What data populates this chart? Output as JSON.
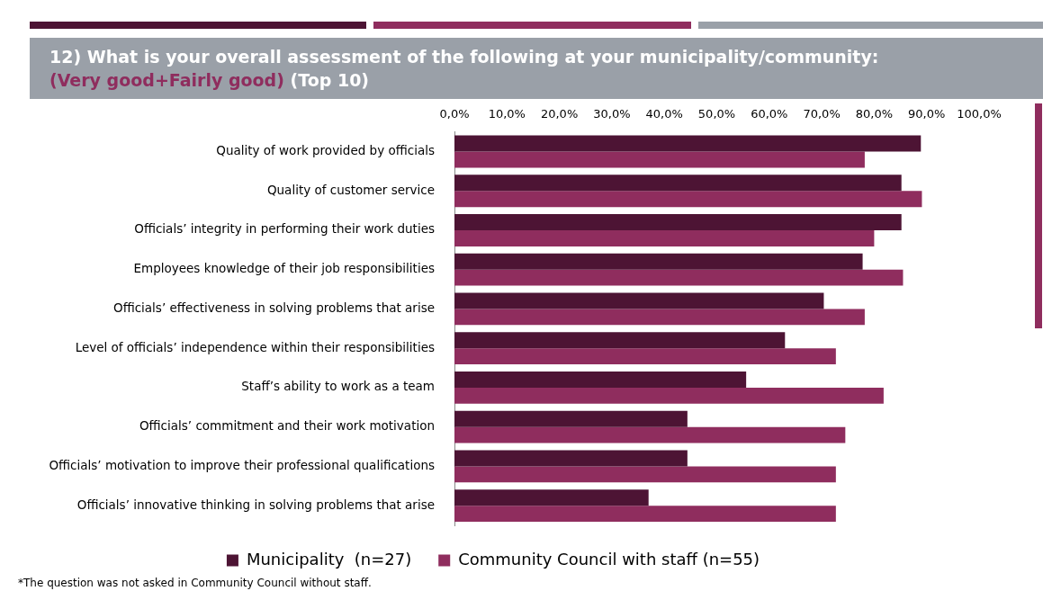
{
  "chart_data": {
    "type": "bar",
    "orientation": "horizontal",
    "title": "12) What is your overall assessment of the following at your municipality/community:",
    "subtitle": "(Very good+Fairly good) (Top 10)",
    "categories": [
      "Quality of work provided by officials",
      "Quality of customer service",
      "Officials’ integrity in performing their work duties",
      "Employees knowledge of their job responsibilities",
      "Officials’ effectiveness in solving problems that arise",
      "Level of officials’ independence within their responsibilities",
      "Staff’s ability to work as a team",
      "Officials’ commitment and their work motivation",
      "Officials’ motivation to improve their professional qualifications",
      "Officials’ innovative thinking in solving problems that arise"
    ],
    "series": [
      {
        "name": "Municipality  (n=27)",
        "color": "#4d1434",
        "values": [
          88.9,
          85.2,
          85.2,
          77.8,
          70.4,
          63.0,
          55.6,
          44.4,
          44.4,
          37.0
        ]
      },
      {
        "name": "Community Council with staff (n=55)",
        "color": "#8f2d5e",
        "values": [
          78.2,
          89.1,
          80.0,
          85.5,
          78.2,
          72.7,
          81.8,
          74.5,
          72.7,
          72.7
        ]
      }
    ],
    "xlim": [
      0,
      100
    ],
    "xticks": [
      {
        "value": 0,
        "label": "0,0%"
      },
      {
        "value": 10,
        "label": "10,0%"
      },
      {
        "value": 20,
        "label": "20,0%"
      },
      {
        "value": 30,
        "label": "30,0%"
      },
      {
        "value": 40,
        "label": "40,0%"
      },
      {
        "value": 50,
        "label": "50,0%"
      },
      {
        "value": 60,
        "label": "60,0%"
      },
      {
        "value": 70,
        "label": "70,0%"
      },
      {
        "value": 80,
        "label": "80,0%"
      },
      {
        "value": 90,
        "label": "90,0%"
      },
      {
        "value": 100,
        "label": "100,0%"
      }
    ],
    "grid": false,
    "legend": "bottom",
    "annotations": [
      "*The question was not asked in Community Council without staff."
    ]
  }
}
